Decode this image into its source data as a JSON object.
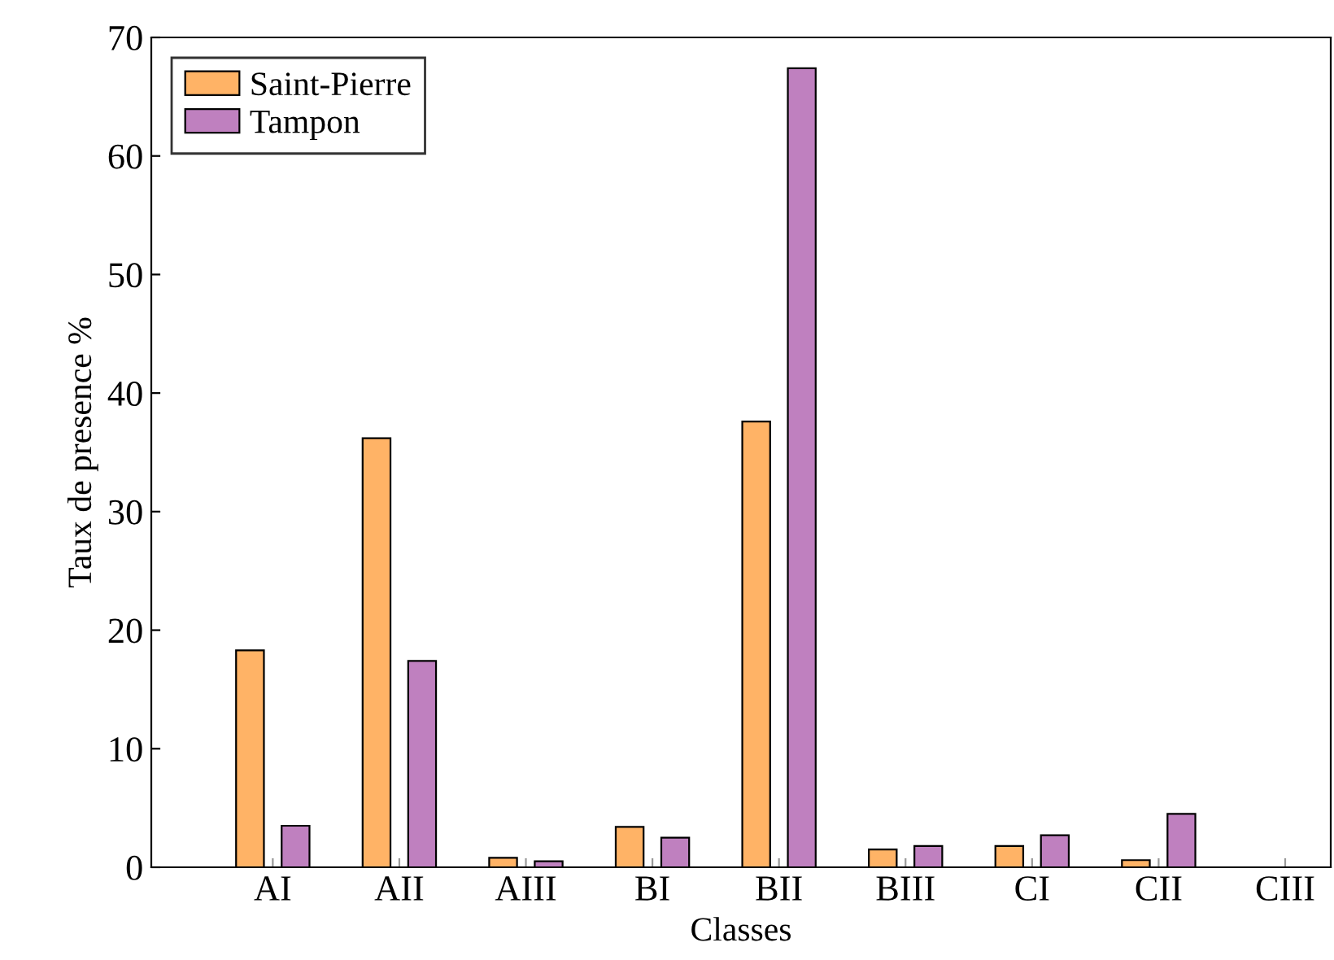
{
  "chart_data": {
    "type": "bar",
    "xlabel": "Classes",
    "ylabel": "Taux de presence %",
    "categories": [
      "AI",
      "AII",
      "AIII",
      "BI",
      "BII",
      "BIII",
      "CI",
      "CII",
      "CIII"
    ],
    "series": [
      {
        "name": "Saint-Pierre",
        "color": "#ffb366",
        "values": [
          18.3,
          36.2,
          0.8,
          3.4,
          37.6,
          1.5,
          1.8,
          0.6,
          0
        ]
      },
      {
        "name": "Tampon",
        "color": "#bf80bf",
        "values": [
          3.5,
          17.4,
          0.5,
          2.5,
          67.4,
          1.8,
          2.7,
          4.5,
          0
        ]
      }
    ],
    "ylim": [
      0,
      70
    ],
    "yticks": [
      0,
      10,
      20,
      30,
      40,
      50,
      60,
      70
    ],
    "grid": false,
    "legend": "top left"
  }
}
